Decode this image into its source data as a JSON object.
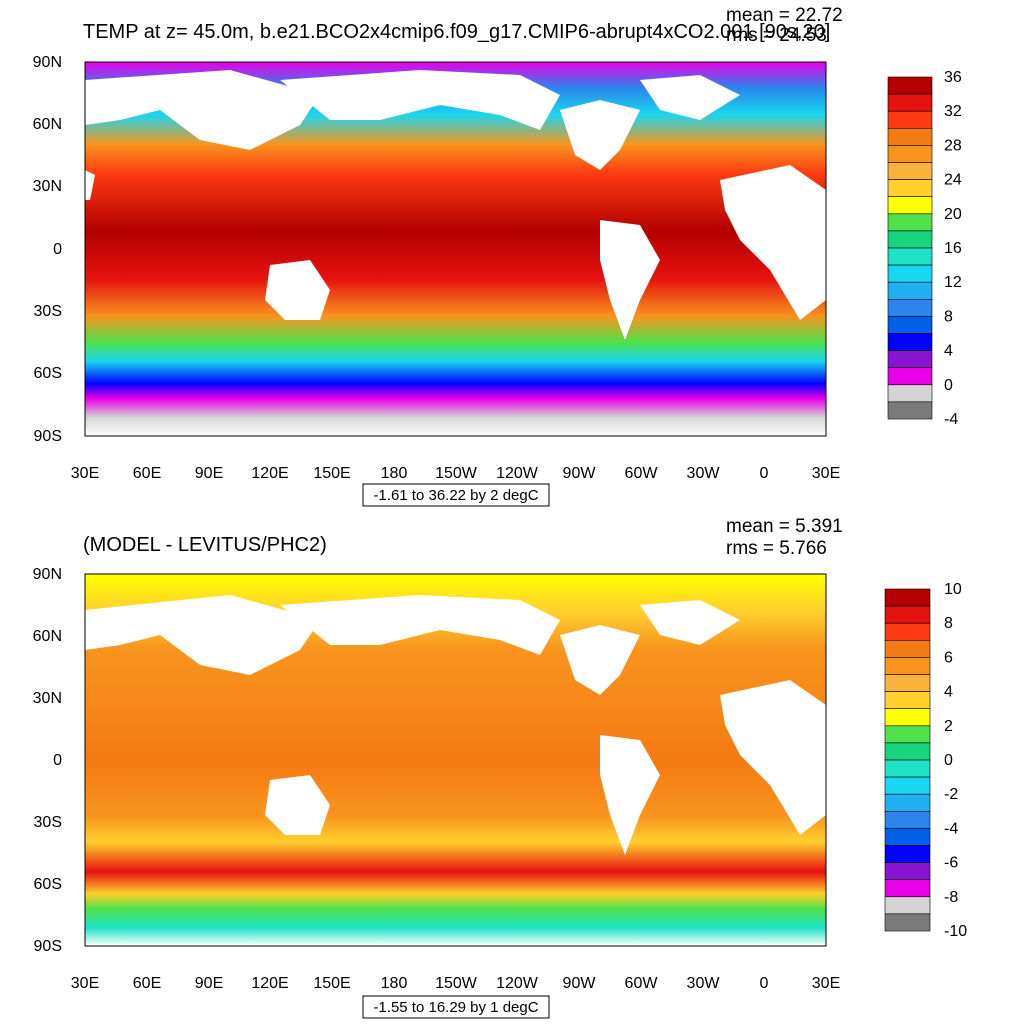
{
  "panels": [
    {
      "title": "TEMP at z=  45.0m, b.e21.BCO2x4cmip6.f09_g17.CMIP6-abrupt4xCO2.001 [90s,20]",
      "mean_label": "mean = 22.72",
      "rms_label": "rms = 24.53",
      "range_label": "-1.61 to 36.22 by 2 degC",
      "colorbar_labels": [
        "36",
        "32",
        "28",
        "24",
        "20",
        "16",
        "12",
        "8",
        "4",
        "0",
        "-4"
      ],
      "colorbar_colors": [
        "#b30000",
        "#e6120f",
        "#ff3a12",
        "#f47a12",
        "#f8941e",
        "#fbb23a",
        "#ffd02e",
        "#ffff00",
        "#4ee14a",
        "#16d37f",
        "#1de2c6",
        "#19d7f0",
        "#1fb0f2",
        "#2a86ea",
        "#0060e8",
        "#0000ff",
        "#8a13d1",
        "#e800e8",
        "#d4d4d4",
        "#7a7a7a"
      ]
    },
    {
      "title": "(MODEL - LEVITUS/PHC2)",
      "mean_label": "mean = 5.391",
      "rms_label": "rms = 5.766",
      "range_label": "-1.55 to 16.29 by 1 degC",
      "colorbar_labels": [
        "10",
        "8",
        "6",
        "4",
        "2",
        "0",
        "-2",
        "-4",
        "-6",
        "-8",
        "-10"
      ],
      "colorbar_colors": [
        "#b30000",
        "#e6120f",
        "#ff3a12",
        "#f47a12",
        "#f8941e",
        "#fbb23a",
        "#ffd02e",
        "#ffff00",
        "#4ee14a",
        "#16d37f",
        "#1de2c6",
        "#19d7f0",
        "#1fb0f2",
        "#2a86ea",
        "#0060e8",
        "#0000ff",
        "#8a13d1",
        "#e800e8",
        "#d4d4d4",
        "#7a7a7a"
      ]
    }
  ],
  "axes": {
    "lat_labels": [
      "90N",
      "60N",
      "30N",
      "0",
      "30S",
      "60S",
      "90S"
    ],
    "lon_labels": [
      "30E",
      "60E",
      "90E",
      "120E",
      "150E",
      "180",
      "150W",
      "120W",
      "90W",
      "60W",
      "30W",
      "0",
      "30E"
    ]
  },
  "chart_data": [
    {
      "type": "heatmap",
      "title": "TEMP at z=  45.0m, b.e21.BCO2x4cmip6.f09_g17.CMIP6-abrupt4xCO2.001 [90s,20]",
      "mean": 22.72,
      "rms": 24.53,
      "contour_min": -1.61,
      "contour_max": 36.22,
      "contour_interval": 2,
      "units": "degC",
      "colorbar_levels": [
        36,
        32,
        28,
        24,
        20,
        16,
        12,
        8,
        4,
        0,
        -4
      ],
      "x_range": [
        "30E",
        "30E"
      ],
      "y_range": [
        "90S",
        "90N"
      ]
    },
    {
      "type": "heatmap",
      "title": "(MODEL - LEVITUS/PHC2)",
      "mean": 5.391,
      "rms": 5.766,
      "contour_min": -1.55,
      "contour_max": 16.29,
      "contour_interval": 1,
      "units": "degC",
      "colorbar_levels": [
        10,
        8,
        6,
        4,
        2,
        0,
        -2,
        -4,
        -6,
        -8,
        -10
      ],
      "x_range": [
        "30E",
        "30E"
      ],
      "y_range": [
        "90S",
        "90N"
      ]
    }
  ]
}
